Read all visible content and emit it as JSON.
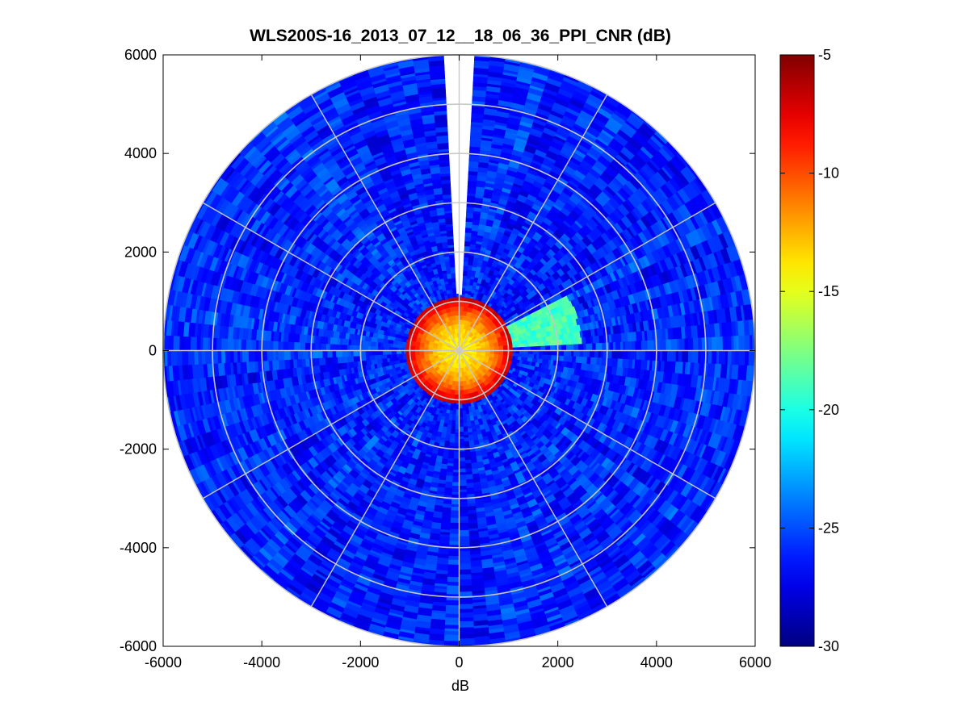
{
  "chart_data": {
    "type": "heatmap",
    "subtype": "polar-ppi",
    "title": "WLS200S-16_2013_07_12__18_06_36_PPI_CNR (dB)",
    "xlabel": "dB",
    "ylabel": "",
    "xlim": [
      -6000,
      6000
    ],
    "ylim": [
      -6000,
      6000
    ],
    "xticks": [
      -6000,
      -4000,
      -2000,
      0,
      2000,
      4000,
      6000
    ],
    "yticks": [
      -6000,
      -4000,
      -2000,
      0,
      2000,
      4000,
      6000
    ],
    "xtick_labels": [
      "-6000",
      "-4000",
      "-2000",
      "0",
      "2000",
      "4000",
      "6000"
    ],
    "ytick_labels": [
      "-6000",
      "-4000",
      "-2000",
      "0",
      "2000",
      "4000",
      "6000"
    ],
    "grid": true,
    "range_rings": [
      1000,
      2000,
      3000,
      4000,
      5000,
      6000
    ],
    "azimuth_spokes_deg": [
      0,
      30,
      60,
      90,
      120,
      150,
      180,
      210,
      240,
      270,
      300,
      330
    ],
    "max_range": 6000,
    "background_cnr_db": -26,
    "near_field": {
      "range_max": 1050,
      "cnr_center_db": -14,
      "cnr_edge_db": -6
    },
    "features": [
      {
        "name": "enhanced sector",
        "azimuth_deg": [
          62,
          87
        ],
        "range": [
          900,
          2450
        ],
        "cnr_db": -19
      },
      {
        "name": "blind sector",
        "azimuth_deg": [
          -4,
          4
        ],
        "range": [
          1100,
          6000
        ],
        "cnr_db": null
      }
    ],
    "colorbar": {
      "min": -30,
      "max": -5,
      "ticks": [
        -30,
        -25,
        -20,
        -15,
        -10,
        -5
      ],
      "tick_labels": [
        "-30",
        "-25",
        "-20",
        "-15",
        "-10",
        "-5"
      ],
      "colormap": "jet"
    }
  }
}
